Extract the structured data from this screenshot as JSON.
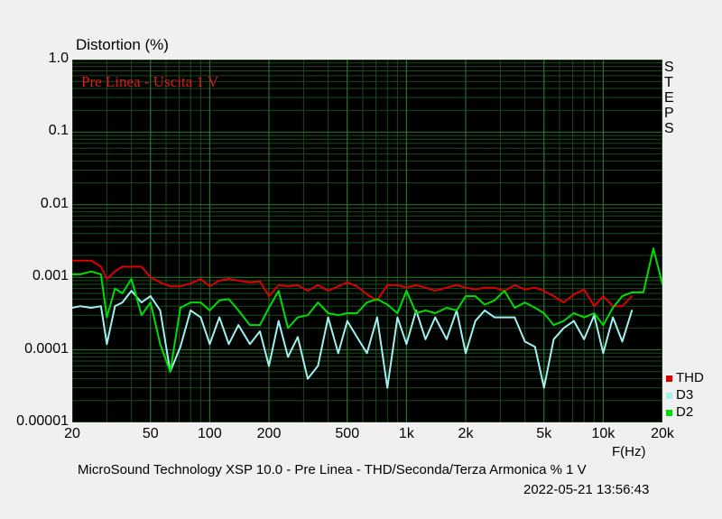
{
  "chart_data": {
    "type": "line",
    "ylabel": "Distortion (%)",
    "xlabel": "F(Hz)",
    "annotation": "Pre Linea - Uscita 1 V",
    "side_label": "STEPS",
    "xscale": "log",
    "yscale": "log",
    "xlim": [
      20,
      20000
    ],
    "ylim": [
      1e-05,
      1.0
    ],
    "grid": true,
    "legend_position": "bottom-right",
    "y_ticks": [
      "1.0",
      "0.1",
      "0.01",
      "0.001",
      "0.0001",
      "0.00001"
    ],
    "y_tick_values": [
      1.0,
      0.1,
      0.01,
      0.001,
      0.0001,
      1e-05
    ],
    "x_ticks": [
      "20",
      "50",
      "100",
      "200",
      "500",
      "1k",
      "2k",
      "5k",
      "10k",
      "20k"
    ],
    "x_tick_values": [
      20,
      50,
      100,
      200,
      500,
      1000,
      2000,
      5000,
      10000,
      20000
    ],
    "series": [
      {
        "name": "THD",
        "color": "#dd0000",
        "x": [
          20,
          22,
          25,
          28,
          30,
          33,
          36,
          40,
          45,
          50,
          56,
          63,
          71,
          80,
          90,
          100,
          112,
          125,
          140,
          160,
          180,
          200,
          224,
          250,
          280,
          315,
          355,
          400,
          450,
          500,
          560,
          630,
          710,
          800,
          900,
          1000,
          1120,
          1250,
          1400,
          1600,
          1800,
          2000,
          2240,
          2500,
          2800,
          3150,
          3550,
          4000,
          4500,
          5000,
          5600,
          6300,
          7100,
          8000,
          9000,
          10000,
          11200,
          12500,
          14000
        ],
        "y": [
          0.0017,
          0.0017,
          0.0017,
          0.0014,
          0.00095,
          0.0012,
          0.0014,
          0.0014,
          0.0014,
          0.001,
          0.00085,
          0.00075,
          0.00075,
          0.00082,
          0.00095,
          0.00075,
          0.0009,
          0.00095,
          0.0009,
          0.00085,
          0.00088,
          0.00055,
          0.00078,
          0.00075,
          0.00078,
          0.00065,
          0.00078,
          0.00065,
          0.00075,
          0.00085,
          0.00075,
          0.00058,
          0.00048,
          0.00078,
          0.00078,
          0.00072,
          0.00078,
          0.00072,
          0.00065,
          0.00072,
          0.00078,
          0.00072,
          0.00068,
          0.00072,
          0.00072,
          0.00065,
          0.00078,
          0.00068,
          0.00072,
          0.00065,
          0.00055,
          0.00045,
          0.00058,
          0.00068,
          0.0004,
          0.00055,
          0.0004,
          0.0004,
          0.00055
        ]
      },
      {
        "name": "D3",
        "color": "#a0f0f0",
        "x": [
          20,
          22,
          25,
          28,
          30,
          33,
          36,
          40,
          45,
          50,
          56,
          63,
          71,
          80,
          90,
          100,
          112,
          125,
          140,
          160,
          180,
          200,
          224,
          250,
          280,
          315,
          355,
          400,
          450,
          500,
          560,
          630,
          710,
          800,
          900,
          1000,
          1120,
          1250,
          1400,
          1600,
          1800,
          2000,
          2240,
          2500,
          2800,
          3150,
          3550,
          4000,
          4500,
          5000,
          5600,
          6300,
          7100,
          8000,
          9000,
          10000,
          11200,
          12500,
          14000
        ],
        "y": [
          0.00038,
          0.0004,
          0.00038,
          0.0004,
          0.00012,
          0.0004,
          0.00045,
          0.00065,
          0.00045,
          0.00055,
          0.00035,
          5e-05,
          0.00011,
          0.00035,
          0.00028,
          0.00012,
          0.00028,
          0.00012,
          0.00022,
          0.00012,
          0.00018,
          6e-05,
          0.00025,
          8e-05,
          0.00015,
          4e-05,
          6e-05,
          0.00028,
          9e-05,
          0.00025,
          0.00015,
          9e-05,
          0.00028,
          3e-05,
          0.00028,
          0.00012,
          0.00035,
          0.00014,
          0.00028,
          0.00014,
          0.00035,
          9e-05,
          0.00025,
          0.00035,
          0.00028,
          0.00028,
          0.00028,
          0.00013,
          0.00011,
          3e-05,
          0.00014,
          0.0002,
          0.00025,
          0.00014,
          0.0003,
          9e-05,
          0.00028,
          0.00013,
          0.00035
        ]
      },
      {
        "name": "D2",
        "color": "#00dd00",
        "x": [
          20,
          22,
          25,
          28,
          30,
          33,
          36,
          40,
          45,
          50,
          56,
          63,
          71,
          80,
          90,
          100,
          112,
          125,
          140,
          160,
          180,
          200,
          224,
          250,
          280,
          315,
          355,
          400,
          450,
          500,
          560,
          630,
          710,
          800,
          900,
          1000,
          1120,
          1250,
          1400,
          1600,
          1800,
          2000,
          2240,
          2500,
          2800,
          3150,
          3550,
          4000,
          4500,
          5000,
          5600,
          6300,
          7100,
          8000,
          9000,
          10000,
          11200,
          12500,
          14000,
          16000,
          18000,
          20000
        ],
        "y": [
          0.0011,
          0.0011,
          0.0012,
          0.0011,
          0.00028,
          0.0007,
          0.0006,
          0.00095,
          0.0003,
          0.00045,
          0.00012,
          5e-05,
          0.00038,
          0.00045,
          0.00045,
          0.00035,
          0.00048,
          0.0005,
          0.00035,
          0.00022,
          0.00022,
          0.00038,
          0.00065,
          0.0002,
          0.00028,
          0.0003,
          0.00045,
          0.00032,
          0.0003,
          0.00032,
          0.00032,
          0.00045,
          0.0005,
          0.00042,
          0.00032,
          0.00065,
          0.00032,
          0.00035,
          0.00032,
          0.00038,
          0.00035,
          0.00055,
          0.00055,
          0.00042,
          0.00048,
          0.00065,
          0.00038,
          0.00045,
          0.00038,
          0.00032,
          0.00022,
          0.00025,
          0.00032,
          0.00028,
          0.00032,
          0.00022,
          0.00038,
          0.00055,
          0.00062,
          0.00062,
          0.0025,
          0.0008
        ]
      }
    ]
  },
  "footer": "MicroSound Technology XSP 10.0 - Pre Linea - THD/Seconda/Terza Armonica % 1 V",
  "timestamp": "2022-05-21 13:56:43"
}
